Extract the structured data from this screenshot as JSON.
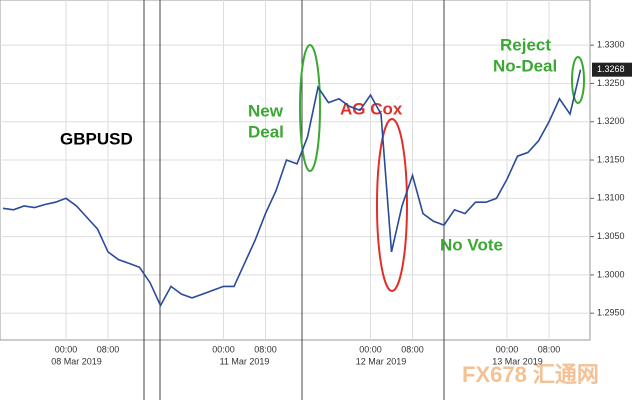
{
  "chart_data": {
    "type": "line",
    "title": "GBPUSD",
    "categories": [
      null,
      null,
      null,
      null,
      null,
      null,
      "00:00",
      null,
      null,
      null,
      "08:00",
      null,
      null,
      null,
      null,
      null,
      null,
      null,
      null,
      null,
      null,
      "00:00",
      null,
      null,
      null,
      "08:00",
      null,
      null,
      null,
      null,
      null,
      null,
      null,
      null,
      null,
      "00:00",
      null,
      null,
      null,
      "08:00",
      null,
      null,
      null,
      null,
      null,
      null,
      null,
      null,
      "00:00",
      null,
      null,
      null,
      "08:00",
      null,
      null,
      null
    ],
    "day_labels": [
      null,
      null,
      null,
      null,
      null,
      null,
      null,
      "08 Mar 2019",
      null,
      null,
      null,
      null,
      null,
      null,
      null,
      null,
      null,
      null,
      null,
      null,
      null,
      null,
      null,
      "11 Mar 2019",
      null,
      null,
      null,
      null,
      null,
      null,
      null,
      null,
      null,
      null,
      null,
      null,
      "12 Mar 2019",
      null,
      null,
      null,
      null,
      null,
      null,
      null,
      null,
      null,
      null,
      null,
      null,
      "13 Mar 2019",
      null,
      null,
      null,
      null,
      null,
      null
    ],
    "series": [
      {
        "name": "GBPUSD",
        "color": "#2a4a9a",
        "values": [
          1.3087,
          1.3085,
          1.309,
          1.3088,
          1.3092,
          1.3095,
          1.31,
          1.309,
          1.3075,
          1.306,
          1.303,
          1.302,
          1.3015,
          1.301,
          1.299,
          1.296,
          1.2985,
          1.2975,
          1.297,
          1.2975,
          1.298,
          1.2985,
          1.2985,
          1.3015,
          1.3045,
          1.308,
          1.311,
          1.315,
          1.3145,
          1.318,
          1.3245,
          1.3225,
          1.323,
          1.322,
          1.3215,
          1.3235,
          1.321,
          1.303,
          1.309,
          1.313,
          1.308,
          1.307,
          1.3065,
          1.3085,
          1.308,
          1.3095,
          1.3095,
          1.31,
          1.3125,
          1.3155,
          1.316,
          1.3175,
          1.32,
          1.323,
          1.321,
          1.3268
        ],
        "value_labels": [
          null,
          null,
          null,
          null,
          null,
          null,
          null,
          null,
          null,
          null,
          null,
          null,
          null,
          null,
          null,
          null,
          null,
          null,
          null,
          null,
          null,
          null,
          null,
          null,
          null,
          null,
          null,
          null,
          null,
          null,
          null,
          null,
          null,
          null,
          null,
          null,
          null,
          null,
          null,
          null,
          null,
          null,
          null,
          null,
          null,
          null,
          null,
          null,
          null,
          null,
          null,
          null,
          null,
          null,
          null,
          "1.3268"
        ]
      }
    ],
    "ylim": [
      1.2915,
      1.3359
    ],
    "yticks": [
      {
        "value": 1.295,
        "label": "1.2950"
      },
      {
        "value": 1.3,
        "label": "1.3000"
      },
      {
        "value": 1.305,
        "label": "1.3050"
      },
      {
        "value": 1.31,
        "label": "1.3100"
      },
      {
        "value": 1.315,
        "label": "1.3150"
      },
      {
        "value": 1.32,
        "label": "1.3200"
      },
      {
        "value": 1.325,
        "label": "1.3250"
      },
      {
        "value": 1.33,
        "label": "1.3300"
      }
    ],
    "grid": true,
    "annotations": {
      "new_deal": [
        "New",
        "Deal"
      ],
      "ag_cox": "AG Cox",
      "no_vote": "No Vote",
      "reject": [
        "Reject",
        "No-Deal"
      ]
    },
    "watermark": "FX678 汇通网"
  }
}
